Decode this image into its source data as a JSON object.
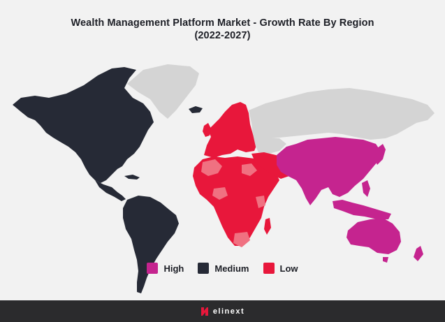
{
  "title": {
    "line1": "Wealth Management Platform Market - Growth Rate By Region",
    "line2": "(2022-2027)"
  },
  "legend": [
    {
      "label": "High",
      "color": "#c5248f"
    },
    {
      "label": "Medium",
      "color": "#262a36"
    },
    {
      "label": "Low",
      "color": "#e8173b"
    }
  ],
  "colors": {
    "high": "#c5248f",
    "medium": "#262a36",
    "low": "#e8173b",
    "low_light": "#f07181",
    "no_data": "#d4d4d4",
    "background": "#f2f2f2"
  },
  "regions": [
    {
      "name": "North America",
      "rate": "Medium"
    },
    {
      "name": "South America",
      "rate": "Medium"
    },
    {
      "name": "Europe",
      "rate": "Low"
    },
    {
      "name": "Middle East & Africa",
      "rate": "Low"
    },
    {
      "name": "Asia Pacific",
      "rate": "High"
    }
  ],
  "footer": {
    "brand": "elinext"
  }
}
